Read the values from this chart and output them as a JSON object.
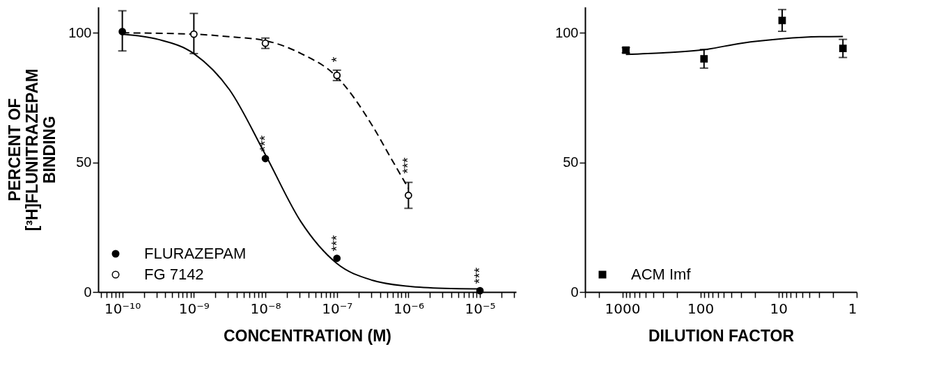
{
  "chart_data": [
    {
      "type": "scatter",
      "xlabel": "CONCENTRATION (M)",
      "ylabel": "PERCENT OF\n[³H]FLUNITRAZEPAM\nBINDING",
      "log": "x",
      "marker": "circle",
      "legend": "bottom left",
      "grid": false,
      "xlim": [
        4.6e-11,
        3.2e-05
      ],
      "ylim": [
        0,
        110
      ],
      "yticks": [
        0,
        50,
        100
      ],
      "xticks": [
        {
          "value": 5e-11,
          "label": null
        },
        {
          "value": 6e-11,
          "label": null
        },
        {
          "value": 7e-11,
          "label": null
        },
        {
          "value": 8e-11,
          "label": null
        },
        {
          "value": 9e-11,
          "label": null
        },
        {
          "value": 1e-10,
          "label": "10⁻¹⁰"
        },
        {
          "value": 2e-10,
          "label": null
        },
        {
          "value": 3e-10,
          "label": null
        },
        {
          "value": 4e-10,
          "label": null
        },
        {
          "value": 5e-10,
          "label": null
        },
        {
          "value": 6e-10,
          "label": null
        },
        {
          "value": 7e-10,
          "label": null
        },
        {
          "value": 8e-10,
          "label": null
        },
        {
          "value": 9e-10,
          "label": null
        },
        {
          "value": 1e-09,
          "label": "10⁻⁹"
        },
        {
          "value": 2e-09,
          "label": null
        },
        {
          "value": 3e-09,
          "label": null
        },
        {
          "value": 4e-09,
          "label": null
        },
        {
          "value": 5e-09,
          "label": null
        },
        {
          "value": 6e-09,
          "label": null
        },
        {
          "value": 7e-09,
          "label": null
        },
        {
          "value": 8e-09,
          "label": null
        },
        {
          "value": 9e-09,
          "label": null
        },
        {
          "value": 1e-08,
          "label": "10⁻⁸"
        },
        {
          "value": 2e-08,
          "label": null
        },
        {
          "value": 3e-08,
          "label": null
        },
        {
          "value": 4e-08,
          "label": null
        },
        {
          "value": 5e-08,
          "label": null
        },
        {
          "value": 6e-08,
          "label": null
        },
        {
          "value": 7e-08,
          "label": null
        },
        {
          "value": 8e-08,
          "label": null
        },
        {
          "value": 9e-08,
          "label": null
        },
        {
          "value": 1e-07,
          "label": "10⁻⁷"
        },
        {
          "value": 2e-07,
          "label": null
        },
        {
          "value": 3e-07,
          "label": null
        },
        {
          "value": 4e-07,
          "label": null
        },
        {
          "value": 5e-07,
          "label": null
        },
        {
          "value": 6e-07,
          "label": null
        },
        {
          "value": 7e-07,
          "label": null
        },
        {
          "value": 8e-07,
          "label": null
        },
        {
          "value": 9e-07,
          "label": null
        },
        {
          "value": 1e-06,
          "label": "10⁻⁶"
        },
        {
          "value": 2e-06,
          "label": null
        },
        {
          "value": 3e-06,
          "label": null
        },
        {
          "value": 4e-06,
          "label": null
        },
        {
          "value": 5e-06,
          "label": null
        },
        {
          "value": 6e-06,
          "label": null
        },
        {
          "value": 7e-06,
          "label": null
        },
        {
          "value": 8e-06,
          "label": null
        },
        {
          "value": 9e-06,
          "label": null
        },
        {
          "value": 1e-05,
          "label": "10⁻⁵"
        },
        {
          "value": 2e-05,
          "label": null
        },
        {
          "value": 3e-05,
          "label": null
        }
      ],
      "series": [
        {
          "type": "line",
          "color": "#000000",
          "line_style": "solid",
          "marker": "none",
          "x": [
            1e-10,
            3.16e-10,
            1e-09,
            3.16e-09,
            1e-08,
            3.16e-08,
            1e-07,
            3.16e-07,
            1e-06,
            3.16e-06,
            1e-05
          ],
          "values": [
            99.5,
            97.5,
            92,
            78,
            53,
            27,
            11,
            4.5,
            2.2,
            1.4,
            1.2
          ]
        },
        {
          "type": "line",
          "color": "#000000",
          "line_style": "dashed",
          "marker": "none",
          "x": [
            1e-10,
            1e-09,
            3.16e-09,
            1e-08,
            3.16e-08,
            1e-07,
            3.16e-07,
            5.6e-07,
            1e-06
          ],
          "values": [
            100,
            99.5,
            98.5,
            97,
            92,
            83,
            64,
            52,
            40
          ]
        },
        {
          "name": "FLURAZEPAM",
          "color": "#000000",
          "x": [
            1e-10,
            1e-08,
            1e-07,
            1e-05
          ],
          "values": [
            100.5,
            51.5,
            13,
            0.5
          ],
          "errors": [
            [
              93,
              108.5
            ],
            null,
            null,
            null
          ]
        },
        {
          "name": "FG 7142",
          "color": "#ffffff",
          "x": [
            1e-09,
            1e-08,
            1e-07,
            1e-06
          ],
          "values": [
            99.5,
            96,
            83.6,
            37.3
          ],
          "errors": [
            [
              92,
              107.5
            ],
            2,
            2,
            5
          ]
        }
      ],
      "annotations": [
        {
          "text": "***",
          "x": 1e-08,
          "y": 51.5
        },
        {
          "text": "***",
          "x": 1e-07,
          "y": 13
        },
        {
          "text": "***",
          "x": 1e-05,
          "y": 0.5
        },
        {
          "text": "*",
          "x": 1e-07,
          "y": 86
        },
        {
          "text": "***",
          "x": 1e-06,
          "y": 43
        }
      ]
    },
    {
      "type": "scatter",
      "xlabel": "DILUTION FACTOR",
      "log": "x",
      "marker": "square",
      "legend": "bottom left",
      "grid": false,
      "xlim": [
        3000,
        1
      ],
      "xticks": [
        {
          "value": 3000,
          "label": null
        },
        {
          "value": 2000,
          "label": null
        },
        1000,
        {
          "value": 900,
          "label": null
        },
        {
          "value": 800,
          "label": null
        },
        {
          "value": 700,
          "label": null
        },
        {
          "value": 600,
          "label": null
        },
        {
          "value": 500,
          "label": null
        },
        {
          "value": 400,
          "label": null
        },
        {
          "value": 300,
          "label": null
        },
        {
          "value": 200,
          "label": null
        },
        100,
        {
          "value": 90,
          "label": null
        },
        {
          "value": 80,
          "label": null
        },
        {
          "value": 70,
          "label": null
        },
        {
          "value": 60,
          "label": null
        },
        {
          "value": 50,
          "label": null
        },
        {
          "value": 40,
          "label": null
        },
        {
          "value": 30,
          "label": null
        },
        {
          "value": 20,
          "label": null
        },
        10,
        {
          "value": 9,
          "label": null
        },
        {
          "value": 8,
          "label": null
        },
        {
          "value": 7,
          "label": null
        },
        {
          "value": 6,
          "label": null
        },
        {
          "value": 5,
          "label": null
        },
        {
          "value": 4,
          "label": null
        },
        {
          "value": 3,
          "label": null
        },
        {
          "value": 2,
          "label": null
        },
        1
      ],
      "ylim": [
        0,
        110
      ],
      "yticks": [
        0,
        50,
        100
      ],
      "series": [
        {
          "type": "line",
          "color": "#000000",
          "line_style": "solid",
          "marker": "none",
          "x": [
            900,
            300,
            90,
            30,
            9,
            3,
            1.5
          ],
          "values": [
            91.7,
            92.3,
            93.5,
            96,
            97.7,
            98.5,
            98.6
          ]
        },
        {
          "name": "ACM Imf",
          "color": "#000000",
          "x": [
            900,
            90,
            9,
            1.5
          ],
          "values": [
            93.3,
            90,
            104.8,
            94
          ],
          "errors": [
            1,
            3.6,
            4.2,
            3.5
          ]
        }
      ]
    }
  ]
}
